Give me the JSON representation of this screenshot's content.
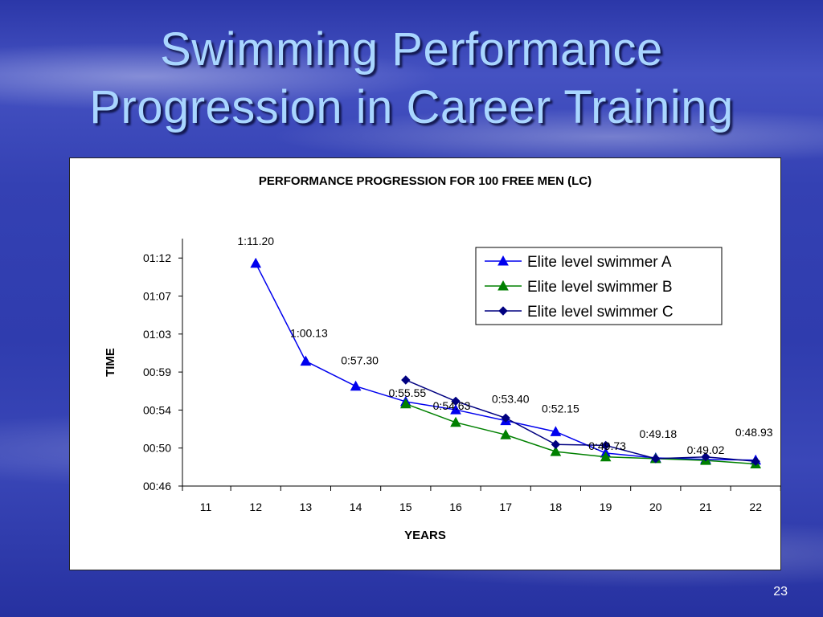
{
  "slide": {
    "title_line1": "Swimming Performance",
    "title_line2": "Progression in Career Training",
    "page_number": "23"
  },
  "chart_data": {
    "type": "line",
    "title": "PERFORMANCE PROGRESSION FOR 100 FREE MEN (LC)",
    "xlabel": "YEARS",
    "ylabel": "TIME",
    "x": [
      11,
      12,
      13,
      14,
      15,
      16,
      17,
      18,
      19,
      20,
      21,
      22
    ],
    "y_tick_labels": [
      "00:46",
      "00:50",
      "00:54",
      "00:59",
      "01:03",
      "01:07",
      "01:12"
    ],
    "y_tick_seconds": [
      46,
      50.3,
      54.6,
      58.9,
      63.2,
      67.5,
      71.8
    ],
    "ylim_seconds": [
      46,
      74
    ],
    "legend_position": "top-right",
    "series": [
      {
        "name": "Elite level swimmer A",
        "color": "#0000ee",
        "marker": "triangle",
        "x": [
          12,
          13,
          14,
          15,
          16,
          17,
          18,
          19,
          20,
          21,
          22
        ],
        "y": [
          71.2,
          60.13,
          57.3,
          55.55,
          54.63,
          53.4,
          52.15,
          49.73,
          49.18,
          49.02,
          48.93
        ]
      },
      {
        "name": "Elite level swimmer B",
        "color": "#008000",
        "marker": "triangle",
        "x": [
          15,
          16,
          17,
          18,
          19,
          20,
          21,
          22
        ],
        "y": [
          55.3,
          53.2,
          51.8,
          49.9,
          49.3,
          49.1,
          48.9,
          48.5
        ]
      },
      {
        "name": "Elite level swimmer C",
        "color": "#000080",
        "marker": "diamond",
        "x": [
          15,
          16,
          17,
          18,
          19,
          20,
          21,
          22
        ],
        "y": [
          58.0,
          55.6,
          53.7,
          50.7,
          50.6,
          49.1,
          49.3,
          48.8
        ]
      }
    ],
    "data_labels": [
      {
        "text": "1:11.20",
        "x": 12,
        "y": 71.2
      },
      {
        "text": "1:00.13",
        "x": 13,
        "y": 60.13
      },
      {
        "text": "0:57.30",
        "x": 14,
        "y": 57.3
      },
      {
        "text": "0:55.55",
        "x": 15,
        "y": 55.55
      },
      {
        "text": "0:54.63",
        "x": 16,
        "y": 54.63
      },
      {
        "text": "0:53.40",
        "x": 17,
        "y": 53.4
      },
      {
        "text": "0:52.15",
        "x": 18,
        "y": 52.15
      },
      {
        "text": "0:49.73",
        "x": 19,
        "y": 49.73
      },
      {
        "text": "0:49.18",
        "x": 20,
        "y": 49.18
      },
      {
        "text": "0:49.02",
        "x": 21,
        "y": 49.02
      },
      {
        "text": "0:48.93",
        "x": 22,
        "y": 48.93
      }
    ]
  }
}
